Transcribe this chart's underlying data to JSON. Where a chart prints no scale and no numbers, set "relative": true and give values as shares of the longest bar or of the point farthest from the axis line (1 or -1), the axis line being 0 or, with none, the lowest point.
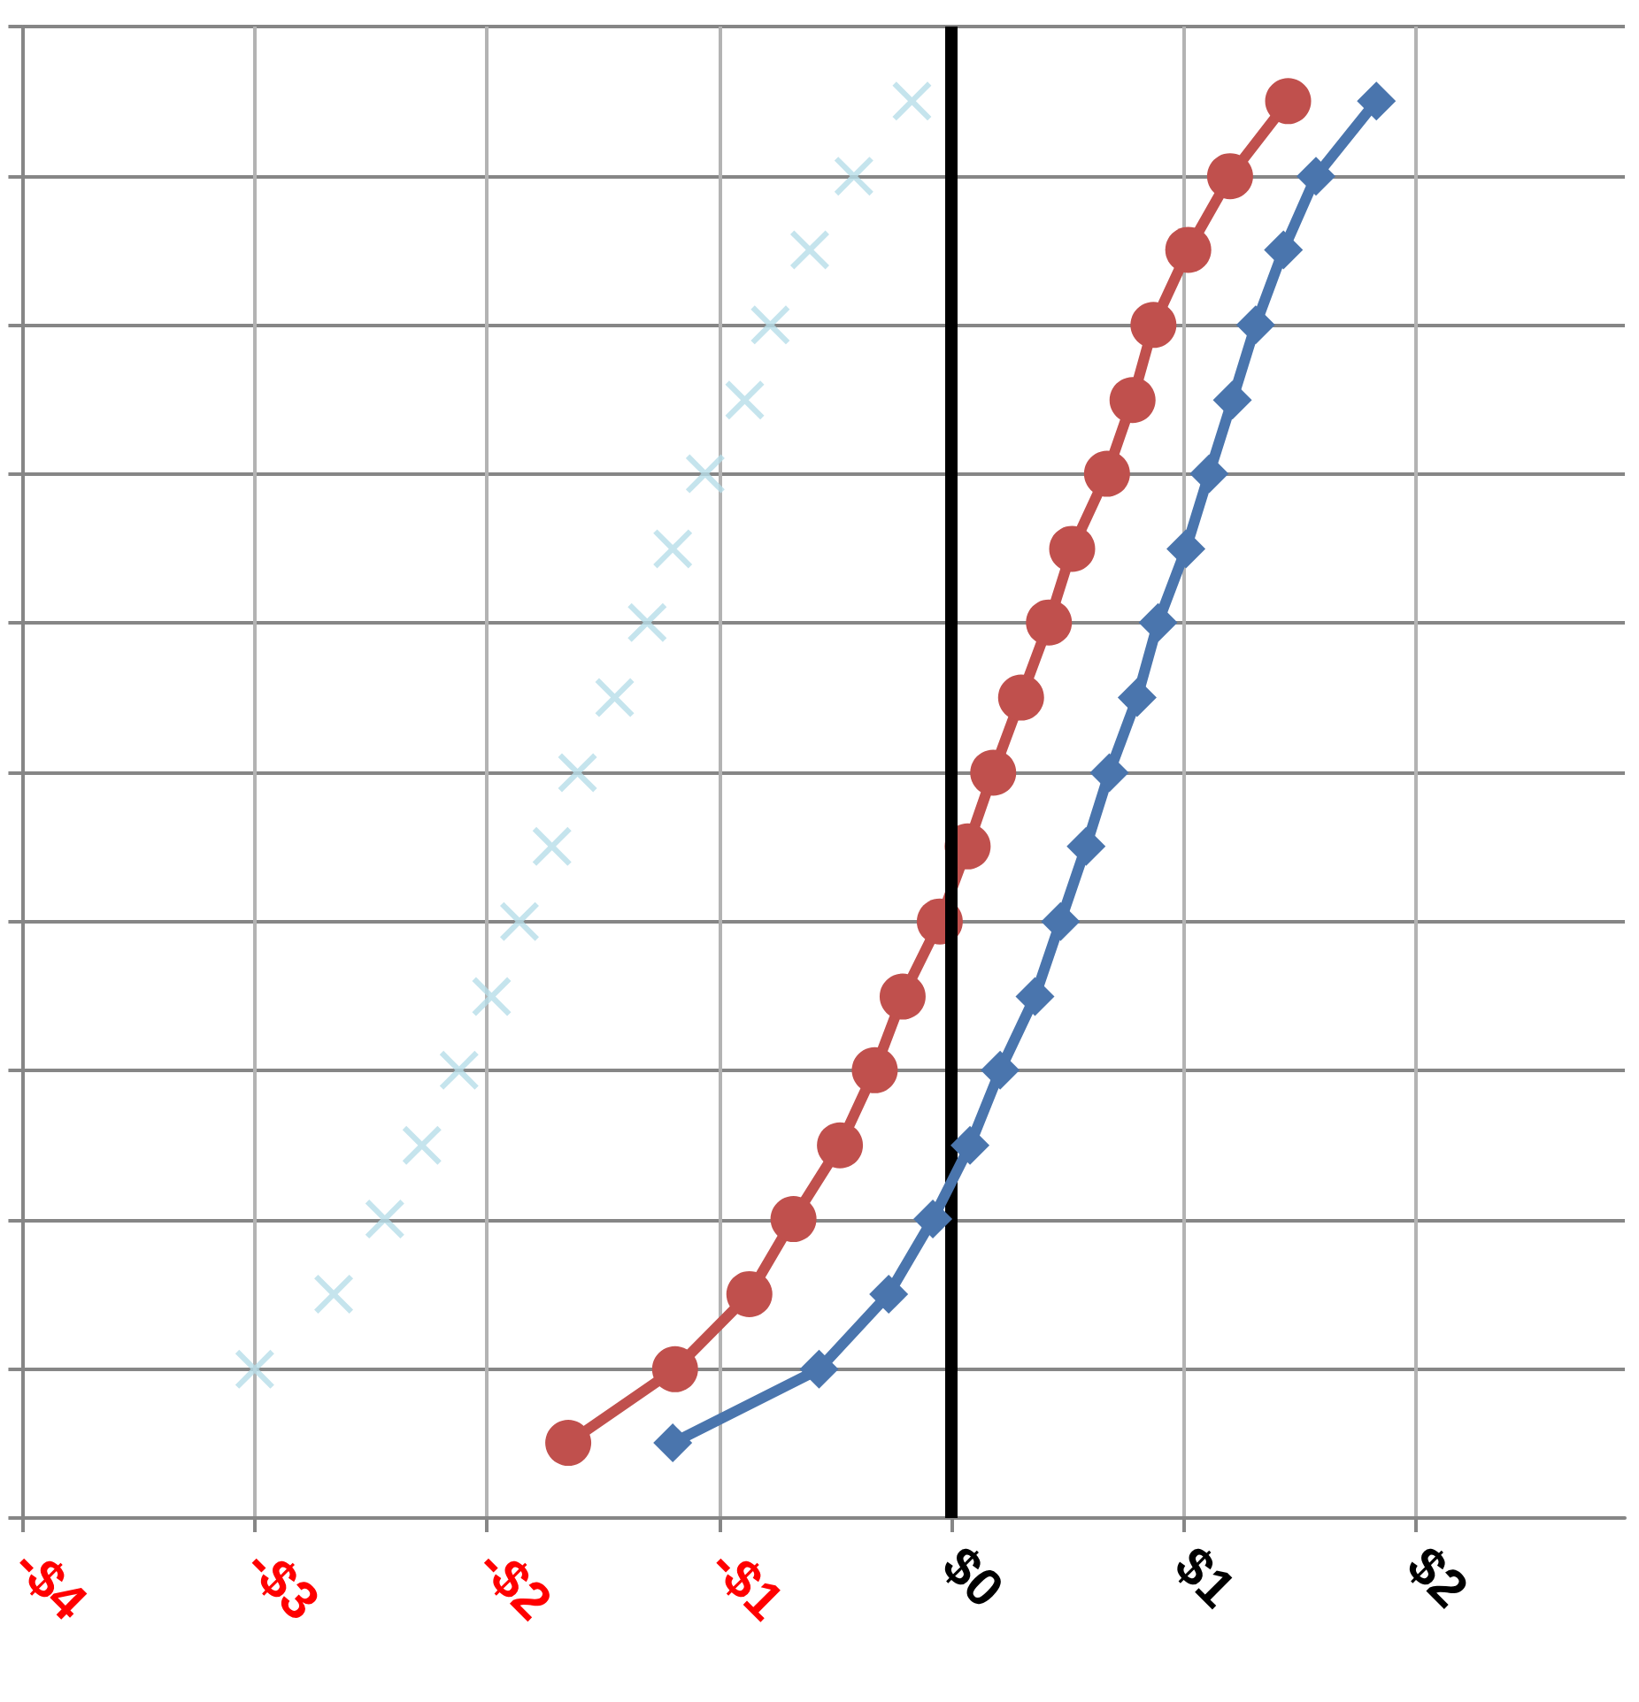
{
  "chart_data": {
    "type": "line",
    "relative": true,
    "xlim": [
      -4,
      2.9
    ],
    "xticks": [
      {
        "value": -4,
        "label": "-$4"
      },
      {
        "value": -3,
        "label": "-$3"
      },
      {
        "value": -2,
        "label": "-$2"
      },
      {
        "value": -1,
        "label": "-$1"
      },
      {
        "value": 0,
        "label": "$0"
      },
      {
        "value": 1,
        "label": "$1"
      },
      {
        "value": 2,
        "label": "$2"
      }
    ],
    "tick_labels": "x",
    "grid": true,
    "line_style": "solid",
    "ref_lines": [
      {
        "axis": "x",
        "value": 0,
        "label": null,
        "color": "#000000"
      }
    ],
    "series": [
      {
        "type": "scatter",
        "marker": "cross",
        "color": "#b7dde8",
        "x": [
          -3.0,
          -2.66,
          -2.44,
          -2.28,
          -2.12,
          -1.98,
          -1.86,
          -1.72,
          -1.61,
          -1.45,
          -1.31,
          -1.2,
          -1.06,
          -0.89,
          -0.78,
          -0.61,
          -0.42,
          -0.17
        ],
        "values": [
          0.105,
          0.158,
          0.211,
          0.263,
          0.316,
          0.368,
          0.421,
          0.474,
          0.526,
          0.579,
          0.632,
          0.684,
          0.737,
          0.789,
          0.842,
          0.895,
          0.947,
          1
        ]
      },
      {
        "marker": "circle",
        "color": "#c0504d",
        "x": [
          -1.65,
          -1.19,
          -0.87,
          -0.68,
          -0.48,
          -0.33,
          -0.21,
          -0.05,
          0.07,
          0.18,
          0.3,
          0.42,
          0.52,
          0.67,
          0.78,
          0.87,
          1.02,
          1.2,
          1.45
        ],
        "values": [
          0.053,
          0.105,
          0.158,
          0.211,
          0.263,
          0.316,
          0.368,
          0.421,
          0.474,
          0.526,
          0.579,
          0.632,
          0.684,
          0.737,
          0.789,
          0.842,
          0.895,
          0.947,
          1
        ]
      },
      {
        "marker": "diamond",
        "color": "#4a75ad",
        "x": [
          -1.2,
          -0.57,
          -0.27,
          -0.08,
          0.08,
          0.21,
          0.36,
          0.47,
          0.58,
          0.68,
          0.8,
          0.89,
          1.01,
          1.11,
          1.21,
          1.31,
          1.43,
          1.57,
          1.83
        ],
        "values": [
          0.053,
          0.105,
          0.158,
          0.211,
          0.263,
          0.316,
          0.368,
          0.421,
          0.474,
          0.526,
          0.579,
          0.632,
          0.684,
          0.737,
          0.789,
          0.842,
          0.895,
          0.947,
          1
        ]
      }
    ]
  }
}
